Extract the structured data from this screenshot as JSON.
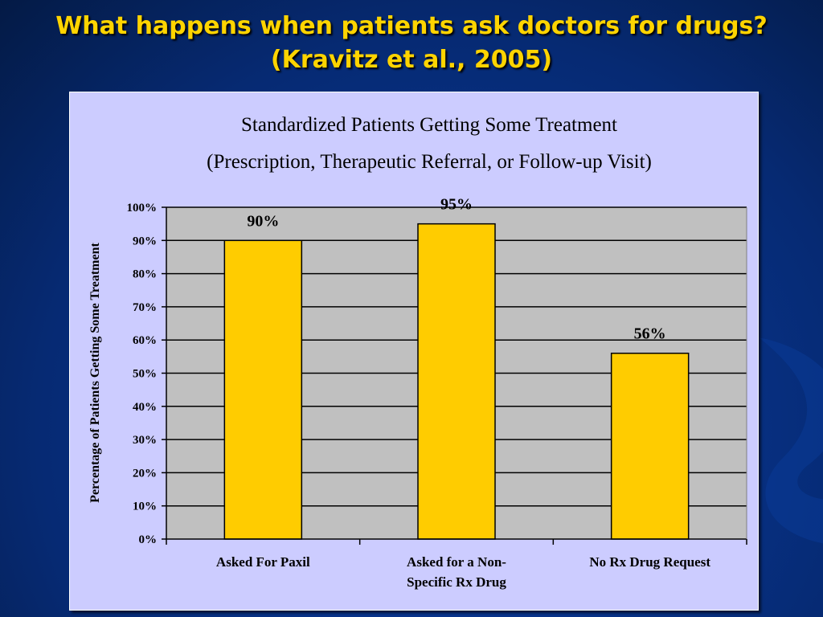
{
  "slide": {
    "title_line1": "What happens when patients ask doctors for drugs?",
    "title_line2": "(Kravitz et al., 2005)"
  },
  "colors": {
    "title": "#ffd400",
    "panel": "#ccccff",
    "plot_area": "#c0c0c0",
    "bar": "#ffcc00"
  },
  "chart_data": {
    "type": "bar",
    "title": "Standardized Patients Getting Some Treatment",
    "subtitle": "(Prescription, Therapeutic Referral, or Follow-up Visit)",
    "xlabel": "",
    "ylabel": "Percentage of Patients Getting Some Treatment",
    "categories": [
      [
        "Asked For Paxil"
      ],
      [
        "Asked for a Non-",
        "Specific Rx Drug"
      ],
      [
        "No Rx Drug Request"
      ]
    ],
    "values": [
      90,
      95,
      56
    ],
    "data_labels": [
      "90%",
      "95%",
      "56%"
    ],
    "ylim": [
      0,
      100
    ],
    "yticks": [
      0,
      10,
      20,
      30,
      40,
      50,
      60,
      70,
      80,
      90,
      100
    ],
    "ytick_labels": [
      "0%",
      "10%",
      "20%",
      "30%",
      "40%",
      "50%",
      "60%",
      "70%",
      "80%",
      "90%",
      "100%"
    ],
    "grid": true,
    "legend": "none"
  }
}
